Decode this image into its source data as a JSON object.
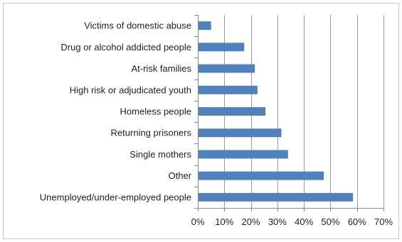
{
  "chart_data": {
    "type": "bar",
    "orientation": "horizontal",
    "categories": [
      "Victims of domestic abuse",
      "Drug or alcohol addicted people",
      "At-risk families",
      "High risk or adjudicated youth",
      "Homeless people",
      "Returning prisoners",
      "Single mothers",
      "Other",
      "Unemployed/under-employed people"
    ],
    "values": [
      5,
      17.5,
      21.5,
      22.5,
      25.5,
      31.5,
      34,
      47.5,
      58.5
    ],
    "value_unit": "%",
    "xlim": [
      0,
      70
    ],
    "xticks": [
      "0%",
      "10%",
      "20%",
      "30%",
      "40%",
      "50%",
      "60%",
      "70%"
    ],
    "grid": true,
    "legend": "none",
    "bar_color": "#4f81bd",
    "title": "",
    "xlabel": "",
    "ylabel": ""
  }
}
